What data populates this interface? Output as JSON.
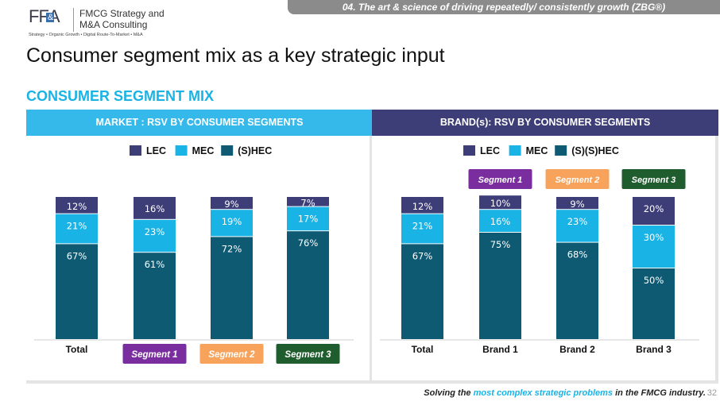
{
  "header": {
    "logo_text": "FF&A",
    "company_name": "FMCG Strategy and\nM&A Consulting",
    "tagline": "Strategy • Organic Growth • Digital Route-To-Market • M&A",
    "banner": "04. The art & science of driving repeatedly/ consistently growth (ZBG®)"
  },
  "title": "Consumer segment mix as a key strategic input",
  "section_title": "CONSUMER SEGMENT MIX",
  "footer": {
    "text_before": "Solving the ",
    "highlight": "most complex strategic problems",
    "text_after": " in the FMCG industry.",
    "page_number": "32"
  },
  "colors": {
    "LEC": "#3d3d78",
    "MEC": "#19b3e6",
    "HEC": "#0e5a73",
    "segment1": "#7a2d9e",
    "segment2": "#f7a35c",
    "segment3": "#1f5d2e"
  },
  "chart_data": [
    {
      "type": "bar",
      "stacked": true,
      "title": "MARKET : RSV BY CONSUMER SEGMENTS",
      "categories": [
        "Total",
        "Segment 1",
        "Segment 2",
        "Segment 3"
      ],
      "category_badges": [
        null,
        "segment1",
        "segment2",
        "segment3"
      ],
      "legend": [
        "LEC",
        "MEC",
        "(S)HEC"
      ],
      "legend_position": "top",
      "series": [
        {
          "name": "(S)HEC",
          "key": "HEC",
          "values": [
            67,
            61,
            72,
            76
          ]
        },
        {
          "name": "MEC",
          "key": "MEC",
          "values": [
            21,
            23,
            19,
            17
          ]
        },
        {
          "name": "LEC",
          "key": "LEC",
          "values": [
            12,
            16,
            9,
            7
          ]
        }
      ],
      "value_suffix": "%",
      "ylim": [
        0,
        100
      ]
    },
    {
      "type": "bar",
      "stacked": true,
      "title": "BRAND(s): RSV BY CONSUMER SEGMENTS",
      "categories": [
        "Total",
        "Brand 1",
        "Brand 2",
        "Brand 3"
      ],
      "top_badges": [
        null,
        "Segment 1",
        "Segment 2",
        "Segment 3"
      ],
      "top_badge_colors": [
        null,
        "segment1",
        "segment2",
        "segment3"
      ],
      "legend": [
        "LEC",
        "MEC",
        "(S)(S)HEC"
      ],
      "legend_position": "top",
      "series": [
        {
          "name": "(S)(S)HEC",
          "key": "HEC",
          "values": [
            67,
            75,
            68,
            50
          ]
        },
        {
          "name": "MEC",
          "key": "MEC",
          "values": [
            21,
            16,
            23,
            30
          ]
        },
        {
          "name": "LEC",
          "key": "LEC",
          "values": [
            12,
            10,
            9,
            20
          ]
        }
      ],
      "value_suffix": "%",
      "ylim": [
        0,
        100
      ]
    }
  ]
}
